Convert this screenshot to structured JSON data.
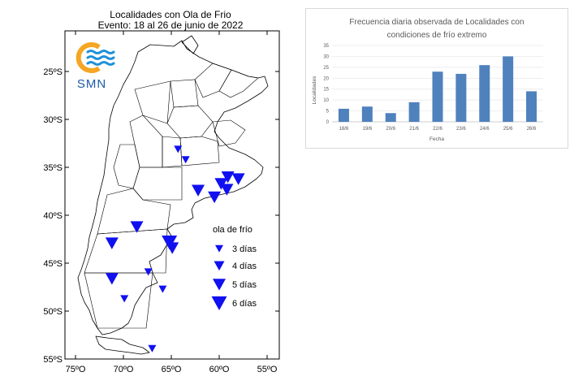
{
  "map": {
    "title": "Localidades con Ola de Frio",
    "subtitle": "Evento: 18 al 26 de junio de 2022",
    "logo_text": "SMN",
    "lat_labels": [
      "25ºS",
      "30ºS",
      "35ºS",
      "40ºS",
      "45ºS",
      "50ºS",
      "55ºS"
    ],
    "lon_labels": [
      "75ºO",
      "70ºO",
      "65ºO",
      "60ºO",
      "55ºO"
    ],
    "legend": {
      "title": "ola de frío",
      "items": [
        {
          "label": "3 días",
          "days": 3
        },
        {
          "label": "4 días",
          "days": 4
        },
        {
          "label": "5 días",
          "days": 5
        },
        {
          "label": "6 días",
          "days": 6
        }
      ]
    },
    "marker_color": "#1010f0",
    "stations": [
      {
        "lon": -64.3,
        "lat": -33.1,
        "days": 3
      },
      {
        "lon": -63.5,
        "lat": -34.2,
        "days": 3
      },
      {
        "lon": -62.2,
        "lat": -37.4,
        "days": 5
      },
      {
        "lon": -60.5,
        "lat": -38.1,
        "days": 5
      },
      {
        "lon": -59.8,
        "lat": -36.7,
        "days": 5
      },
      {
        "lon": -59.1,
        "lat": -36.0,
        "days": 5
      },
      {
        "lon": -59.2,
        "lat": -37.3,
        "days": 5
      },
      {
        "lon": -58.0,
        "lat": -36.2,
        "days": 5
      },
      {
        "lon": -68.6,
        "lat": -41.2,
        "days": 5
      },
      {
        "lon": -71.2,
        "lat": -42.9,
        "days": 5
      },
      {
        "lon": -65.2,
        "lat": -42.8,
        "days": 6
      },
      {
        "lon": -64.9,
        "lat": -43.4,
        "days": 5
      },
      {
        "lon": -67.4,
        "lat": -45.9,
        "days": 3
      },
      {
        "lon": -71.2,
        "lat": -46.6,
        "days": 5
      },
      {
        "lon": -65.9,
        "lat": -47.7,
        "days": 3
      },
      {
        "lon": -69.9,
        "lat": -48.7,
        "days": 3
      },
      {
        "lon": -67.0,
        "lat": -53.9,
        "days": 3
      }
    ]
  },
  "chart_data": {
    "type": "bar",
    "title": "Frecuencia diaria observada de Localidades con condiciones de frío extremo",
    "title_lines": [
      "Frecuencia diaria observada de Localidades con",
      "condiciones de frío extremo"
    ],
    "categories": [
      "18/6",
      "19/6",
      "20/6",
      "21/6",
      "22/6",
      "23/6",
      "24/6",
      "25/6",
      "26/6"
    ],
    "values": [
      6,
      7,
      4,
      9,
      23,
      22,
      26,
      30,
      14
    ],
    "xlabel": "Fecha",
    "ylabel": "Localidades",
    "ylim": [
      0,
      35
    ],
    "yticks": [
      "0",
      "5",
      "10",
      "15",
      "20",
      "25",
      "30",
      "35"
    ],
    "bar_color": "#4f81bd"
  }
}
